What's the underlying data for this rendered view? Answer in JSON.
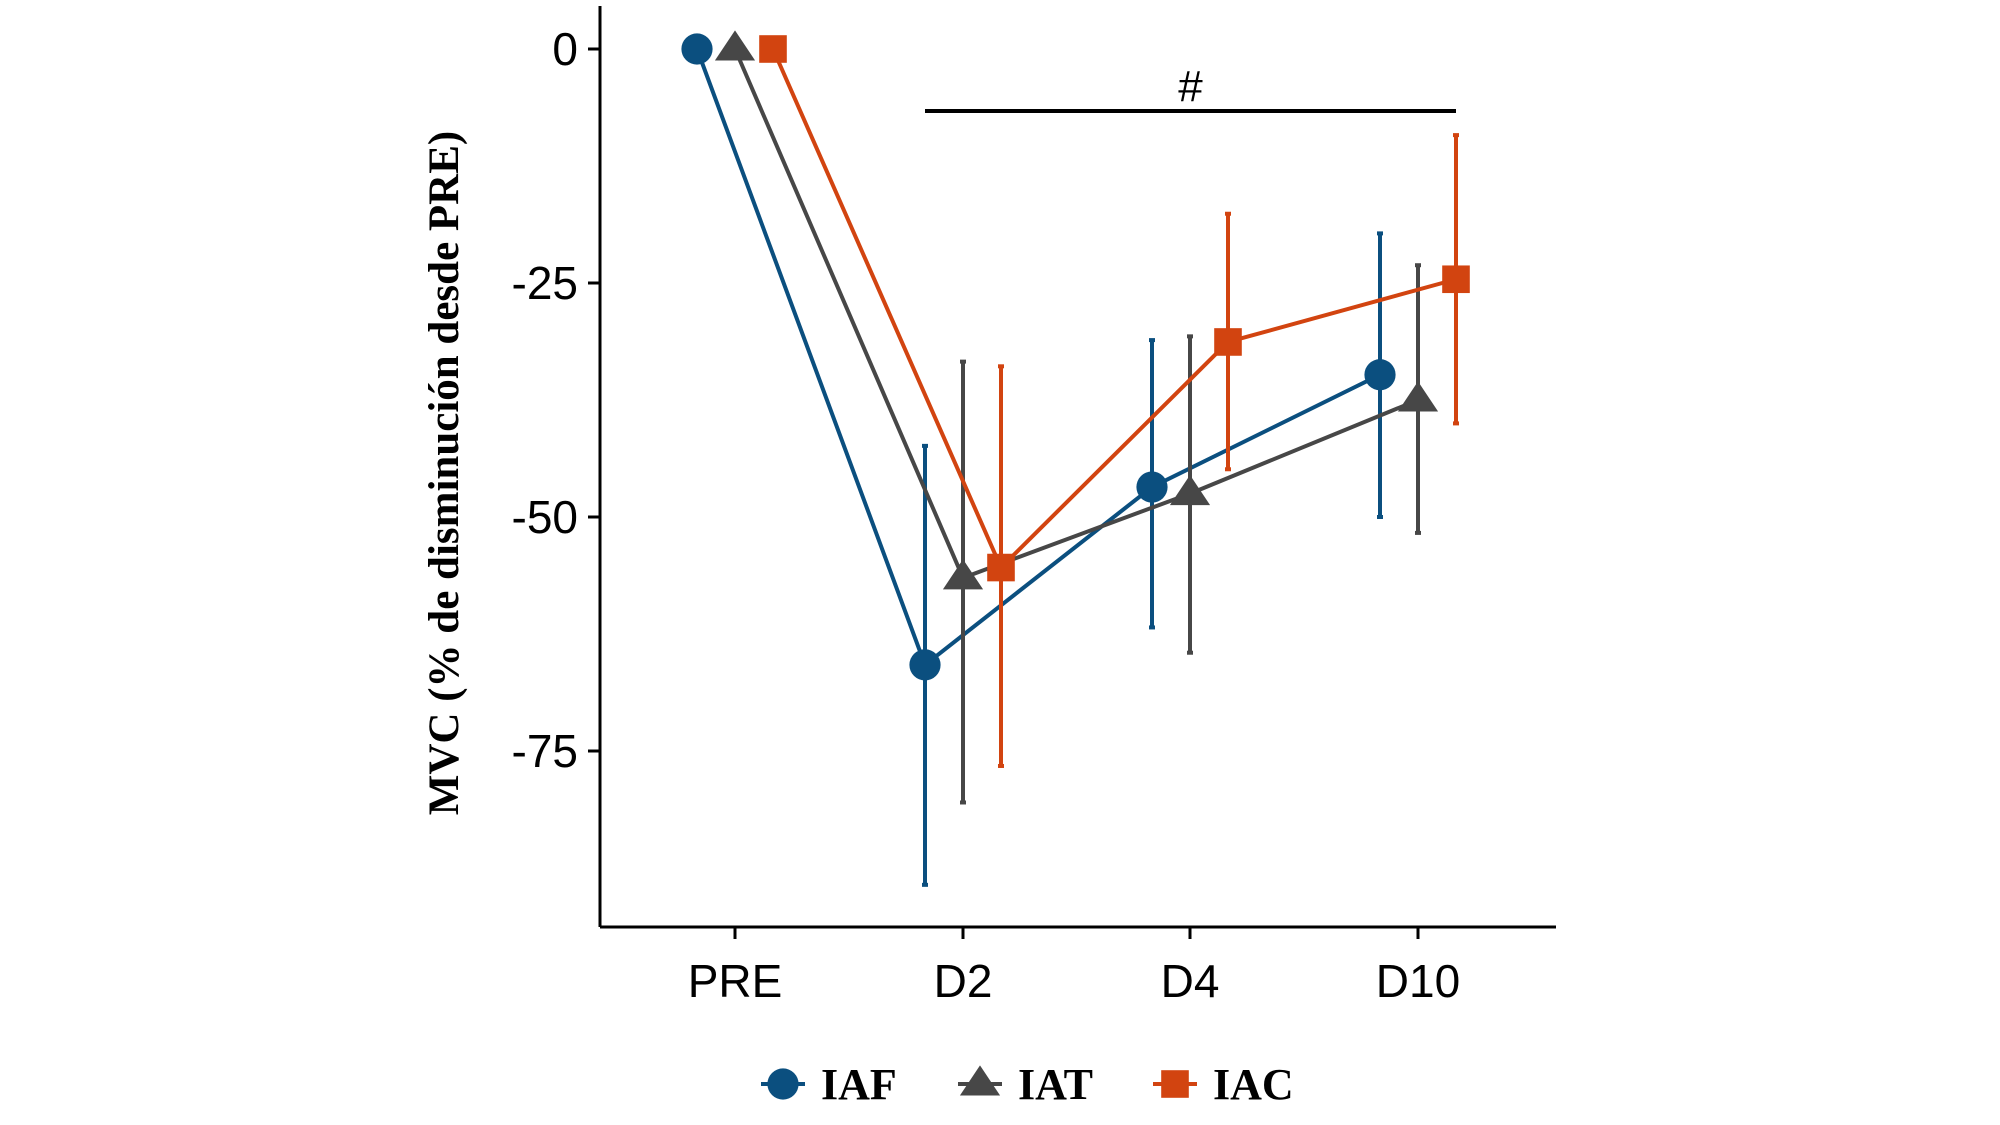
{
  "chart_data": {
    "type": "line",
    "ylabel": "MVC (% de disminución desde PRE)",
    "xlabel": "",
    "categories": [
      "PRE",
      "D2",
      "D4",
      "D10"
    ],
    "yticks": [
      0,
      -25,
      -50,
      -75
    ],
    "ytick_labels": [
      "0",
      "-25",
      "-50",
      "-75"
    ],
    "ylim": [
      -93,
      4
    ],
    "grid": false,
    "legend_position": "bottom",
    "series": [
      {
        "name": "IAF",
        "marker": "circle",
        "color": "#0b4f7f",
        "values": [
          0,
          -65.8,
          -46.8,
          -34.8
        ],
        "err_low": [
          null,
          -89.3,
          -61.8,
          -50.0
        ],
        "err_high": [
          null,
          -42.4,
          -31.1,
          -19.7
        ]
      },
      {
        "name": "IAT",
        "marker": "triangle",
        "color": "#474747",
        "values": [
          0,
          -56.5,
          -47.5,
          -37.5
        ],
        "err_low": [
          null,
          -80.5,
          -64.5,
          -51.7
        ],
        "err_high": [
          null,
          -33.4,
          -30.7,
          -23.1
        ]
      },
      {
        "name": "IAC",
        "marker": "square",
        "color": "#d24410",
        "values": [
          0,
          -55.4,
          -31.3,
          -24.6
        ],
        "err_low": [
          null,
          -76.6,
          -44.9,
          -40.0
        ],
        "err_high": [
          null,
          -33.9,
          -17.6,
          -9.2
        ]
      }
    ],
    "annotations": [
      {
        "text": "#",
        "from": "D2",
        "to": "D10"
      }
    ]
  }
}
